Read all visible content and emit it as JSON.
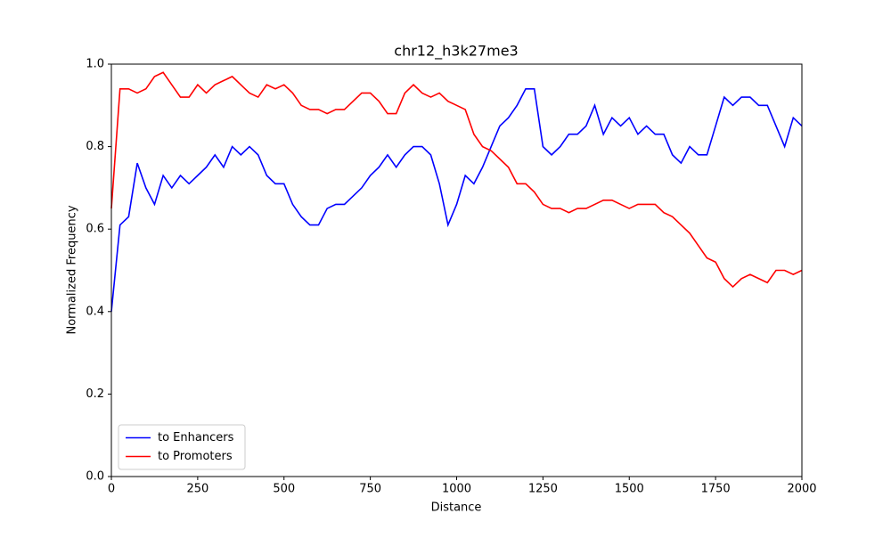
{
  "chart_data": {
    "type": "line",
    "title": "chr12_h3k27me3",
    "xlabel": "Distance",
    "ylabel": "Normalized Frequency",
    "x": [
      0,
      25,
      50,
      75,
      100,
      125,
      150,
      175,
      200,
      225,
      250,
      275,
      300,
      325,
      350,
      375,
      400,
      425,
      450,
      475,
      500,
      525,
      550,
      575,
      600,
      625,
      650,
      675,
      700,
      725,
      750,
      775,
      800,
      825,
      850,
      875,
      900,
      925,
      950,
      975,
      1000,
      1025,
      1050,
      1075,
      1100,
      1125,
      1150,
      1175,
      1200,
      1225,
      1250,
      1275,
      1300,
      1325,
      1350,
      1375,
      1400,
      1425,
      1450,
      1475,
      1500,
      1525,
      1550,
      1575,
      1600,
      1625,
      1650,
      1675,
      1700,
      1725,
      1750,
      1775,
      1800,
      1825,
      1850,
      1875,
      1900,
      1925,
      1950,
      1975,
      2000
    ],
    "series": [
      {
        "name": "to Enhancers",
        "color": "#0000ff",
        "values": [
          0.4,
          0.61,
          0.63,
          0.76,
          0.7,
          0.66,
          0.73,
          0.7,
          0.73,
          0.71,
          0.73,
          0.75,
          0.78,
          0.75,
          0.8,
          0.78,
          0.8,
          0.78,
          0.73,
          0.71,
          0.71,
          0.66,
          0.63,
          0.61,
          0.61,
          0.65,
          0.66,
          0.66,
          0.68,
          0.7,
          0.73,
          0.75,
          0.78,
          0.75,
          0.78,
          0.8,
          0.8,
          0.78,
          0.71,
          0.61,
          0.66,
          0.73,
          0.71,
          0.75,
          0.8,
          0.85,
          0.87,
          0.9,
          0.94,
          0.94,
          0.8,
          0.78,
          0.8,
          0.83,
          0.83,
          0.85,
          0.9,
          0.83,
          0.87,
          0.85,
          0.87,
          0.83,
          0.85,
          0.83,
          0.83,
          0.78,
          0.76,
          0.8,
          0.78,
          0.78,
          0.85,
          0.92,
          0.9,
          0.92,
          0.92,
          0.9,
          0.9,
          0.85,
          0.8,
          0.87,
          0.85
        ]
      },
      {
        "name": "to Promoters",
        "color": "#ff0000",
        "values": [
          0.65,
          0.94,
          0.94,
          0.93,
          0.94,
          0.97,
          0.98,
          0.95,
          0.92,
          0.92,
          0.95,
          0.93,
          0.95,
          0.96,
          0.97,
          0.95,
          0.93,
          0.92,
          0.95,
          0.94,
          0.95,
          0.93,
          0.9,
          0.89,
          0.89,
          0.88,
          0.89,
          0.89,
          0.91,
          0.93,
          0.93,
          0.91,
          0.88,
          0.88,
          0.93,
          0.95,
          0.93,
          0.92,
          0.93,
          0.91,
          0.9,
          0.89,
          0.83,
          0.8,
          0.79,
          0.77,
          0.75,
          0.71,
          0.71,
          0.69,
          0.66,
          0.65,
          0.65,
          0.64,
          0.65,
          0.65,
          0.66,
          0.67,
          0.67,
          0.66,
          0.65,
          0.66,
          0.66,
          0.66,
          0.64,
          0.63,
          0.61,
          0.59,
          0.56,
          0.53,
          0.52,
          0.48,
          0.46,
          0.48,
          0.49,
          0.48,
          0.47,
          0.5,
          0.5,
          0.49,
          0.5
        ]
      }
    ],
    "xlim": [
      0,
      2000
    ],
    "xticks": [
      0,
      250,
      500,
      750,
      1000,
      1250,
      1500,
      1750,
      2000
    ],
    "ylim": [
      0,
      1
    ],
    "yticks": [
      {
        "value": 0,
        "label": "0.0"
      },
      0.2,
      0.4,
      0.6,
      0.8,
      {
        "value": 1,
        "label": "1.0"
      }
    ],
    "legend": "lower left",
    "grid": false
  }
}
